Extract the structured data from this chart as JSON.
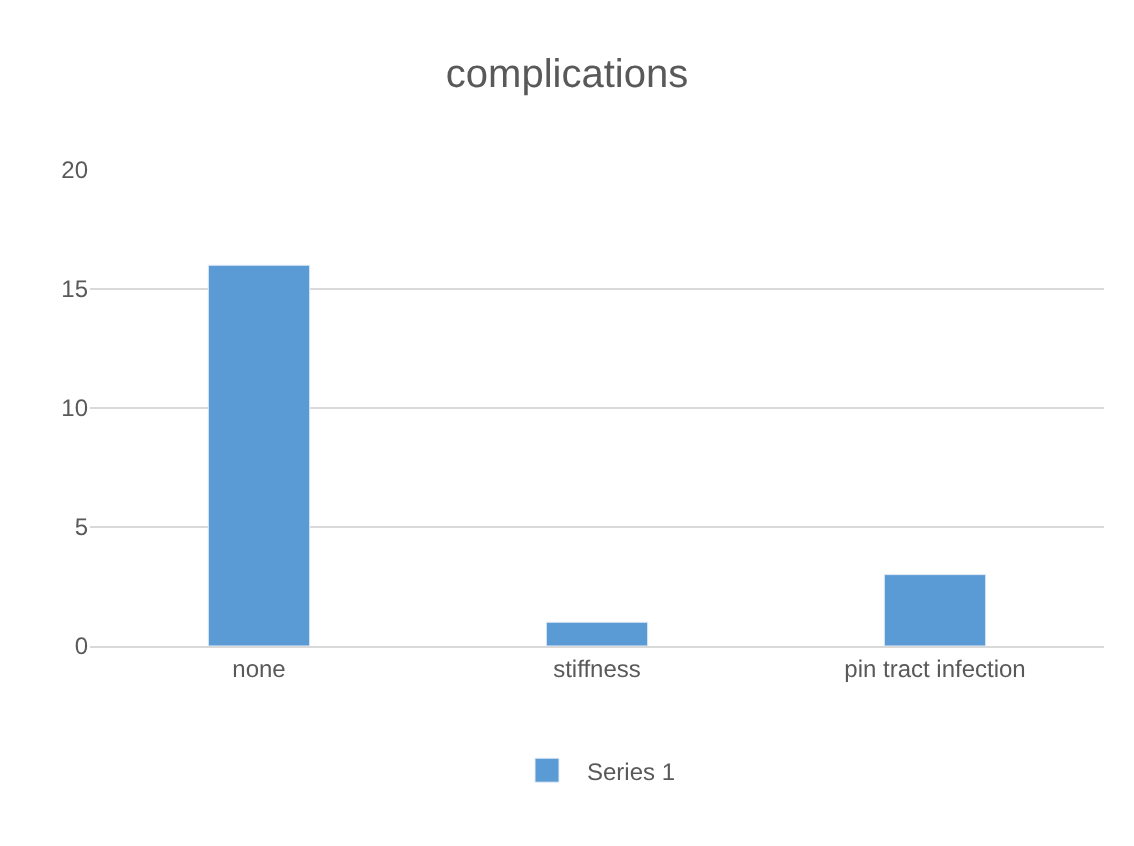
{
  "chart_data": {
    "type": "bar",
    "title": "complications",
    "categories": [
      "none",
      "stiffness",
      "pin tract infection"
    ],
    "series": [
      {
        "name": "Series 1",
        "color": "#5b9bd5",
        "values": [
          16,
          1,
          3
        ]
      }
    ],
    "ylim": [
      0,
      20
    ],
    "yticks": [
      0,
      5,
      10,
      15,
      20
    ],
    "grid": "y",
    "legend": "bottom"
  }
}
